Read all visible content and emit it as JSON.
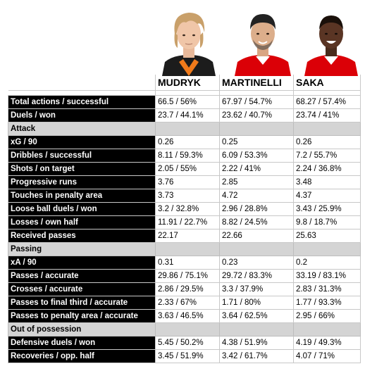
{
  "players": [
    "MUDRYK",
    "MARTINELLI",
    "SAKA"
  ],
  "colors": {
    "label_bg": "#000000",
    "section_bg": "#d4d4d4",
    "arsenal_red": "#db0007",
    "shakhtar_orange": "#f07a1a"
  },
  "sections": [
    {
      "title": "",
      "rows": [
        {
          "label": "Total actions / successful",
          "values": [
            "66.5 / 56%",
            "67.97 / 54.7%",
            "68.27 / 57.4%"
          ]
        },
        {
          "label": "Duels / won",
          "values": [
            "23.7 / 44.1%",
            "23.62 / 40.7%",
            "23.74 / 41%"
          ]
        }
      ]
    },
    {
      "title": "Attack",
      "rows": [
        {
          "label": "xG / 90",
          "values": [
            "0.26",
            "0.25",
            "0.26"
          ]
        },
        {
          "label": "Dribbles / successful",
          "values": [
            "8.11 / 59.3%",
            "6.09 / 53.3%",
            "7.2 / 55.7%"
          ]
        },
        {
          "label": "Shots / on target",
          "values": [
            "2.05 / 55%",
            "2.22 / 41%",
            "2.24 / 36.8%"
          ]
        },
        {
          "label": "Progressive runs",
          "values": [
            "3.76",
            "2.85",
            "3.48"
          ]
        },
        {
          "label": "Touches in penalty area",
          "values": [
            "3.73",
            "4.72",
            "4.37"
          ]
        },
        {
          "label": "Loose ball duels / won",
          "values": [
            "3.2 / 32.8%",
            "2.96 / 28.8%",
            "3.43 / 25.9%"
          ]
        },
        {
          "label": "Losses / own half",
          "values": [
            "11.91 / 22.7%",
            "8.82 / 24.5%",
            "9.8 / 18.7%"
          ]
        },
        {
          "label": "Received passes",
          "values": [
            "22.17",
            "22.66",
            "25.63"
          ]
        }
      ]
    },
    {
      "title": "Passing",
      "rows": [
        {
          "label": "xA / 90",
          "values": [
            "0.31",
            "0.23",
            "0.2"
          ]
        },
        {
          "label": "Passes / accurate",
          "values": [
            "29.86 / 75.1%",
            "29.72 / 83.3%",
            "33.19 / 83.1%"
          ]
        },
        {
          "label": "Crosses / accurate",
          "values": [
            "2.86 / 29.5%",
            "3.3 / 37.9%",
            "2.83 / 31.3%"
          ]
        },
        {
          "label": "Passes to final third / accurate",
          "values": [
            "2.33 / 67%",
            "1.71 / 80%",
            "1.77 / 93.3%"
          ]
        },
        {
          "label": "Passes to penalty area / accurate",
          "values": [
            "3.63 / 46.5%",
            "3.64 / 62.5%",
            "2.95 / 66%"
          ]
        }
      ]
    },
    {
      "title": "Out of possession",
      "rows": [
        {
          "label": "Defensive duels / won",
          "values": [
            "5.45 / 50.2%",
            "4.38 / 51.9%",
            "4.19 / 49.3%"
          ]
        },
        {
          "label": "Recoveries / opp. half",
          "values": [
            "3.45 / 51.9%",
            "3.42 / 61.7%",
            "4.07 / 71%"
          ]
        }
      ]
    }
  ]
}
